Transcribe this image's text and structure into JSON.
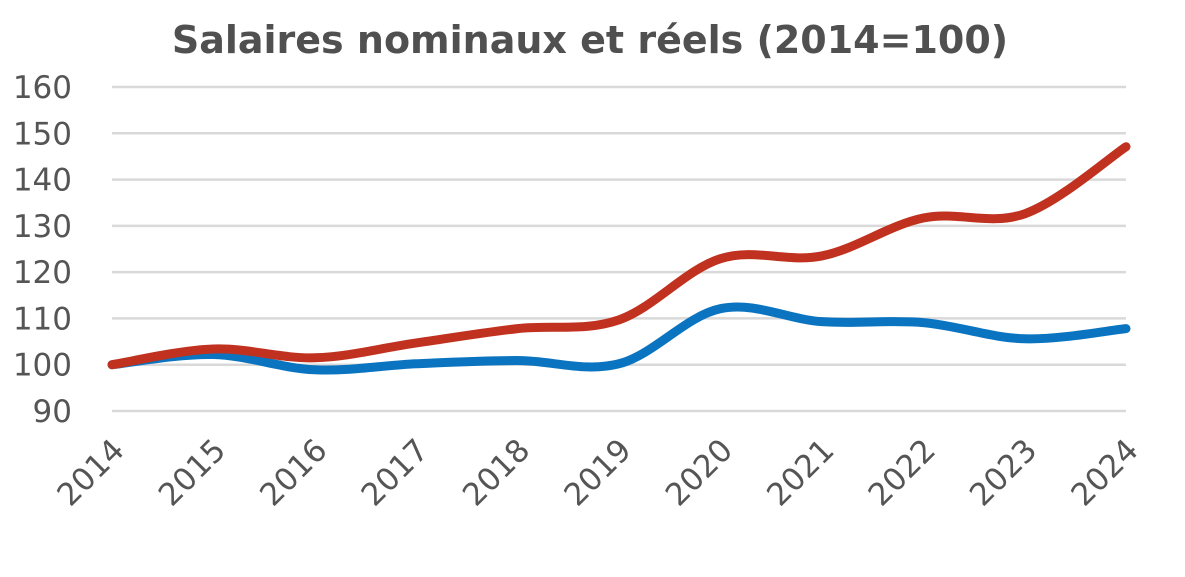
{
  "chart_data": {
    "type": "line",
    "title": "Salaires nominaux et réels (2014=100)",
    "xlabel": "",
    "ylabel": "",
    "categories": [
      "2014",
      "2015",
      "2016",
      "2017",
      "2018",
      "2019",
      "2020",
      "2021",
      "2022",
      "2023",
      "2024"
    ],
    "yticks": [
      "90",
      "100",
      "110",
      "120",
      "130",
      "140",
      "150",
      "160"
    ],
    "ylim": [
      90,
      160
    ],
    "grid": true,
    "legend": "none",
    "series": [
      {
        "color": "#c0321f",
        "values": [
          100,
          103.4,
          101.5,
          104.7,
          107.8,
          109.7,
          122.9,
          123.5,
          131.7,
          132.6,
          147.1
        ]
      },
      {
        "color": "#0a74c0",
        "values": [
          100,
          102.2,
          98.9,
          100.2,
          100.9,
          100.2,
          112.1,
          109.3,
          109.1,
          105.6,
          107.8
        ]
      }
    ]
  }
}
